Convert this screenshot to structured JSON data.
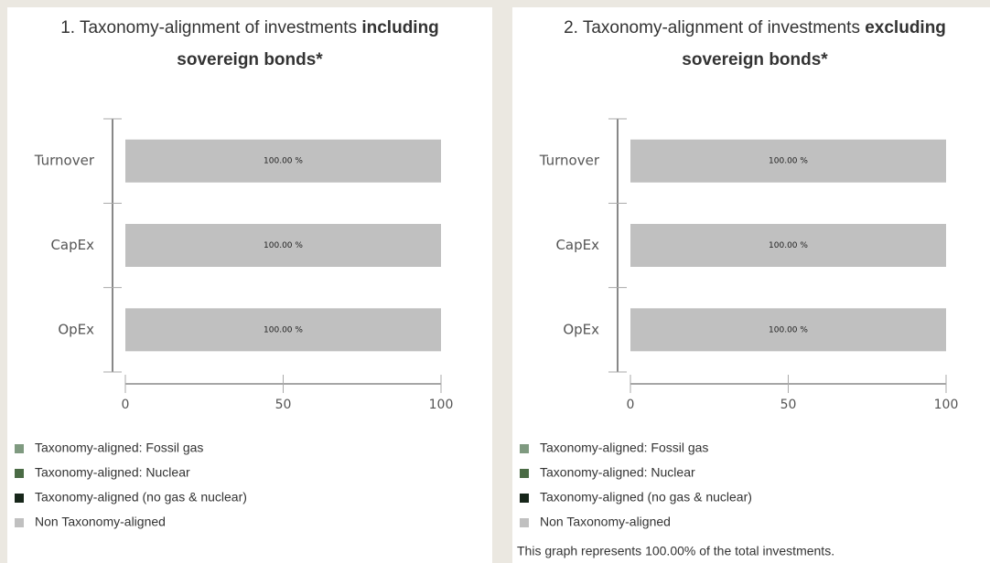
{
  "chart_data": [
    {
      "type": "bar",
      "orientation": "horizontal",
      "stacked": true,
      "title": "1. Taxonomy-alignment of investments",
      "title_emphasis": [
        "including",
        "sovereign bonds*"
      ],
      "categories": [
        "Turnover",
        "CapEx",
        "OpEx"
      ],
      "series": [
        {
          "name": "Taxonomy-aligned: Fossil gas",
          "color": "#7f9a80",
          "values": [
            0,
            0,
            0
          ]
        },
        {
          "name": "Taxonomy-aligned: Nuclear",
          "color": "#4a6b45",
          "values": [
            0,
            0,
            0
          ]
        },
        {
          "name": "Taxonomy-aligned (no gas & nuclear)",
          "color": "#17261a",
          "values": [
            0,
            0,
            0
          ]
        },
        {
          "name": "Non Taxonomy-aligned",
          "color": "#c0c0c0",
          "values": [
            100,
            100,
            100
          ],
          "value_labels": [
            "100.00 %",
            "100.00 %",
            "100.00 %"
          ]
        }
      ],
      "xlim": [
        0,
        100
      ],
      "xticks": [
        0,
        50,
        100
      ]
    },
    {
      "type": "bar",
      "orientation": "horizontal",
      "stacked": true,
      "title": "2. Taxonomy-alignment of investments",
      "title_emphasis": [
        "excluding",
        "sovereign bonds*"
      ],
      "categories": [
        "Turnover",
        "CapEx",
        "OpEx"
      ],
      "series": [
        {
          "name": "Taxonomy-aligned: Fossil gas",
          "color": "#7f9a80",
          "values": [
            0,
            0,
            0
          ]
        },
        {
          "name": "Taxonomy-aligned: Nuclear",
          "color": "#4a6b45",
          "values": [
            0,
            0,
            0
          ]
        },
        {
          "name": "Taxonomy-aligned (no gas & nuclear)",
          "color": "#17261a",
          "values": [
            0,
            0,
            0
          ]
        },
        {
          "name": "Non Taxonomy-aligned",
          "color": "#c0c0c0",
          "values": [
            100,
            100,
            100
          ],
          "value_labels": [
            "100.00 %",
            "100.00 %",
            "100.00 %"
          ]
        }
      ],
      "xlim": [
        0,
        100
      ],
      "xticks": [
        0,
        50,
        100
      ],
      "note": "This graph represents 100.00% of the total investments."
    }
  ]
}
